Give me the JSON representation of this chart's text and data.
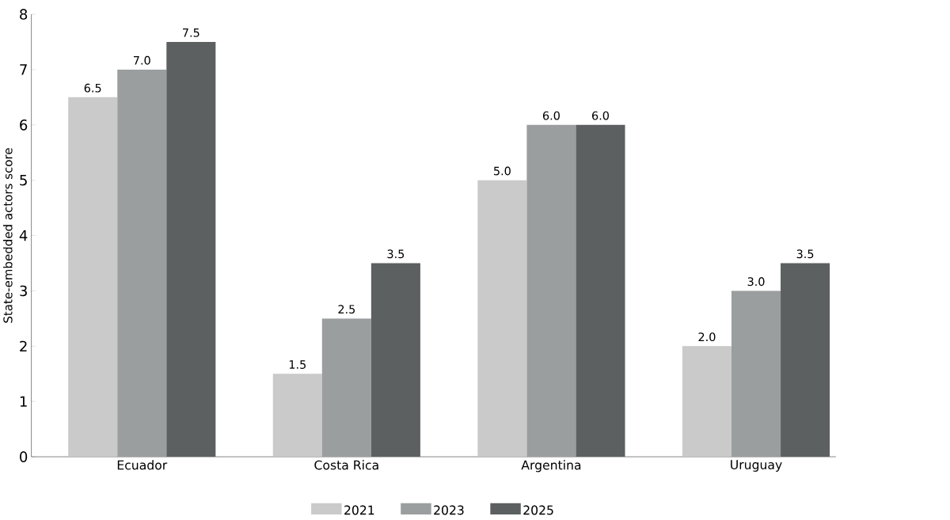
{
  "chart_data": {
    "type": "bar",
    "ylabel": "State-embedded actors score",
    "categories": [
      "Ecuador",
      "Costa Rica",
      "Argentina",
      "Uruguay"
    ],
    "series": [
      {
        "name": "2021",
        "color": "#cacaca",
        "values": [
          6.5,
          1.5,
          5,
          2
        ],
        "value_labels": [
          "6.5",
          "1.5",
          "5.0",
          "2.0"
        ]
      },
      {
        "name": "2023",
        "color": "#9a9e9f",
        "values": [
          7,
          2.5,
          6,
          3
        ],
        "value_labels": [
          "7.0",
          "2.5",
          "6.0",
          "3.0"
        ]
      },
      {
        "name": "2025",
        "color": "#5c6061",
        "values": [
          7.5,
          3.5,
          6,
          3.5
        ],
        "value_labels": [
          "7.5",
          "3.5",
          "6.0",
          "3.5"
        ]
      }
    ],
    "ylim": [
      0,
      8
    ],
    "yticks": [
      0,
      1,
      2,
      3,
      4,
      5,
      6,
      7,
      8
    ],
    "legend": "bottom"
  }
}
